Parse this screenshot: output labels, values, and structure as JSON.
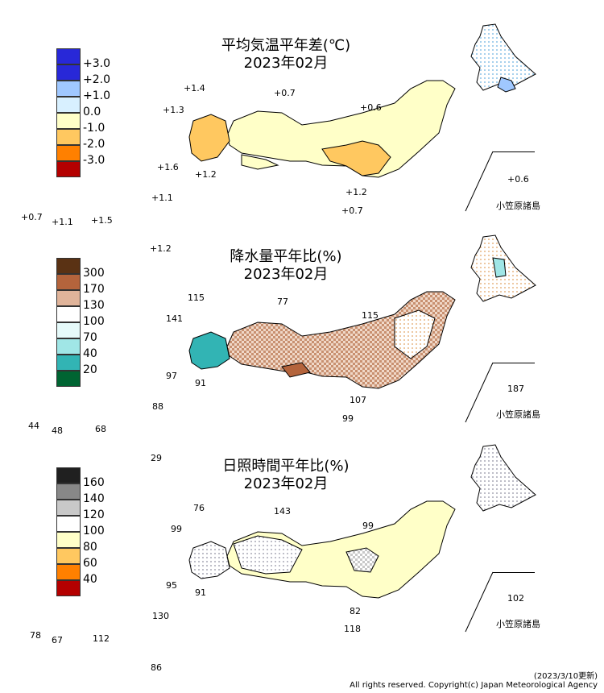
{
  "panels": [
    {
      "title": "平均気温平年差(℃)",
      "period": "2023年02月",
      "legend": [
        {
          "label": "+3.0",
          "color": "#b40000"
        },
        {
          "label": "+2.0",
          "color": "#ff8000"
        },
        {
          "label": "+1.0",
          "color": "#ffc860"
        },
        {
          "label": "0.0",
          "color": "#ffffc8"
        },
        {
          "label": "-1.0",
          "color": "#d8f0ff"
        },
        {
          "label": "-2.0",
          "color": "#a0c8ff"
        },
        {
          "label": "-3.0",
          "color": "#2828d8"
        }
      ],
      "extra_color": "#2828d8",
      "values": [
        "+1.4",
        "+1.3",
        "+0.7",
        "+0.6",
        "+1.6",
        "+1.2",
        "+1.1",
        "+0.7",
        "+1.1",
        "+1.5",
        "+1.2",
        "+0.7",
        "+1.2",
        "+0.6"
      ],
      "bonin_label": "小笠原諸島"
    },
    {
      "title": "降水量平年比(%)",
      "period": "2023年02月",
      "legend": [
        {
          "label": "300",
          "color": "#006432"
        },
        {
          "label": "170",
          "color": "#32b4b4"
        },
        {
          "label": "130",
          "color": "#a0e6e6"
        },
        {
          "label": "100",
          "color": "#e6fafa"
        },
        {
          "label": "70",
          "color": "#ffffff"
        },
        {
          "label": "40",
          "color": "#e0b49a"
        },
        {
          "label": "20",
          "color": "#b4643c"
        }
      ],
      "extra_color": "#5a3214",
      "values": [
        "115",
        "77",
        "141",
        "115",
        "97",
        "91",
        "88",
        "44",
        "48",
        "68",
        "29",
        "107",
        "99",
        "187"
      ],
      "bonin_label": "小笠原諸島"
    },
    {
      "title": "日照時間平年比(%)",
      "period": "2023年02月",
      "legend": [
        {
          "label": "160",
          "color": "#b40000"
        },
        {
          "label": "140",
          "color": "#ff8000"
        },
        {
          "label": "120",
          "color": "#ffc860"
        },
        {
          "label": "100",
          "color": "#ffffc8"
        },
        {
          "label": "80",
          "color": "#ffffff"
        },
        {
          "label": "60",
          "color": "#c8c8c8"
        },
        {
          "label": "40",
          "color": "#888888"
        }
      ],
      "extra_color": "#202020",
      "values": [
        "76",
        "143",
        "99",
        "99",
        "95",
        "91",
        "130",
        "78",
        "67",
        "112",
        "86",
        "82",
        "118",
        "102"
      ],
      "bonin_label": "小笠原諸島"
    }
  ],
  "footer": {
    "updated": "(2023/3/10更新)",
    "copyright": "All rights reserved. Copyright(c) Japan Meteorological Agency"
  }
}
